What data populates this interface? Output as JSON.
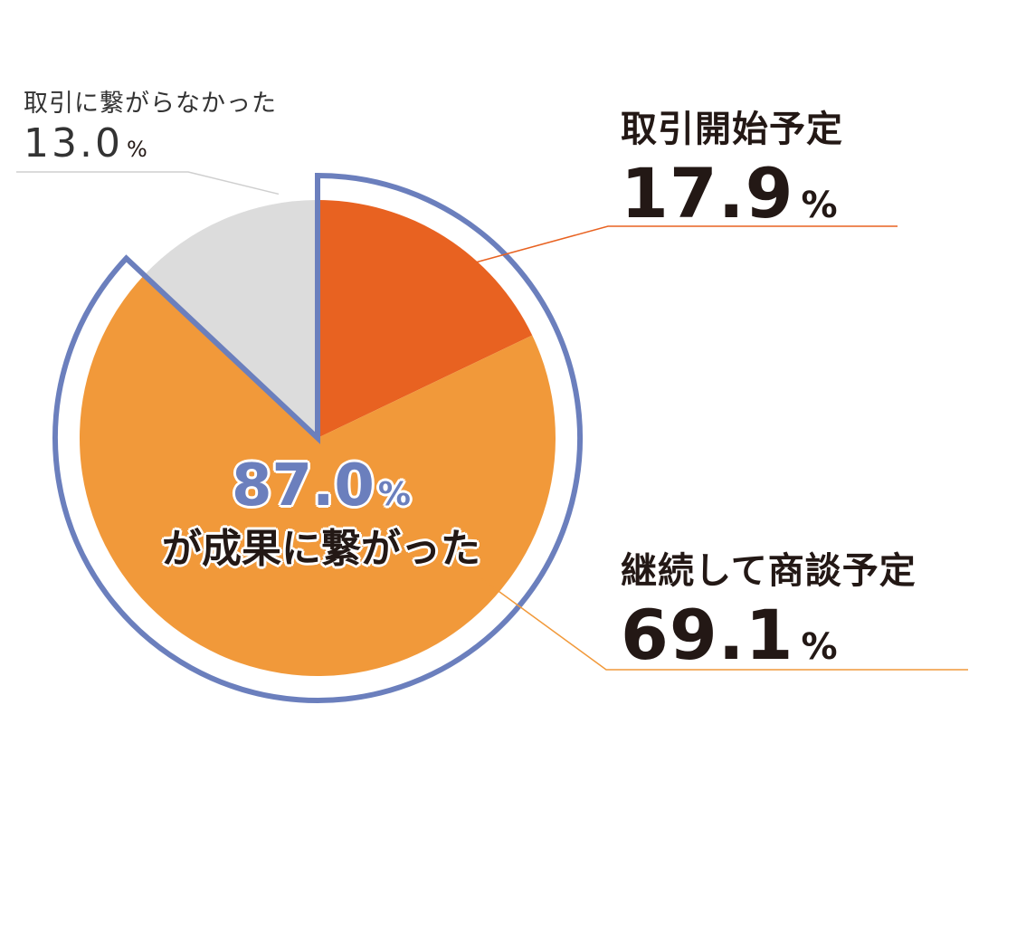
{
  "chart_data": {
    "type": "pie",
    "unit": "%",
    "slices": [
      {
        "label": "取引開始予定",
        "value": 17.9,
        "display": "17.9",
        "color": "#e86221"
      },
      {
        "label": "継続して商談予定",
        "value": 69.1,
        "display": "69.1",
        "color": "#f1993a"
      },
      {
        "label": "取引に繋がらなかった",
        "value": 13.0,
        "display": "13.0",
        "color": "#dcdcdc"
      }
    ],
    "highlight": {
      "value": "87.0",
      "unit": "%",
      "text": "が成果に繋がった",
      "outline_color": "#6b7fbd",
      "covers": [
        "取引開始予定",
        "継続して商談予定"
      ]
    }
  }
}
